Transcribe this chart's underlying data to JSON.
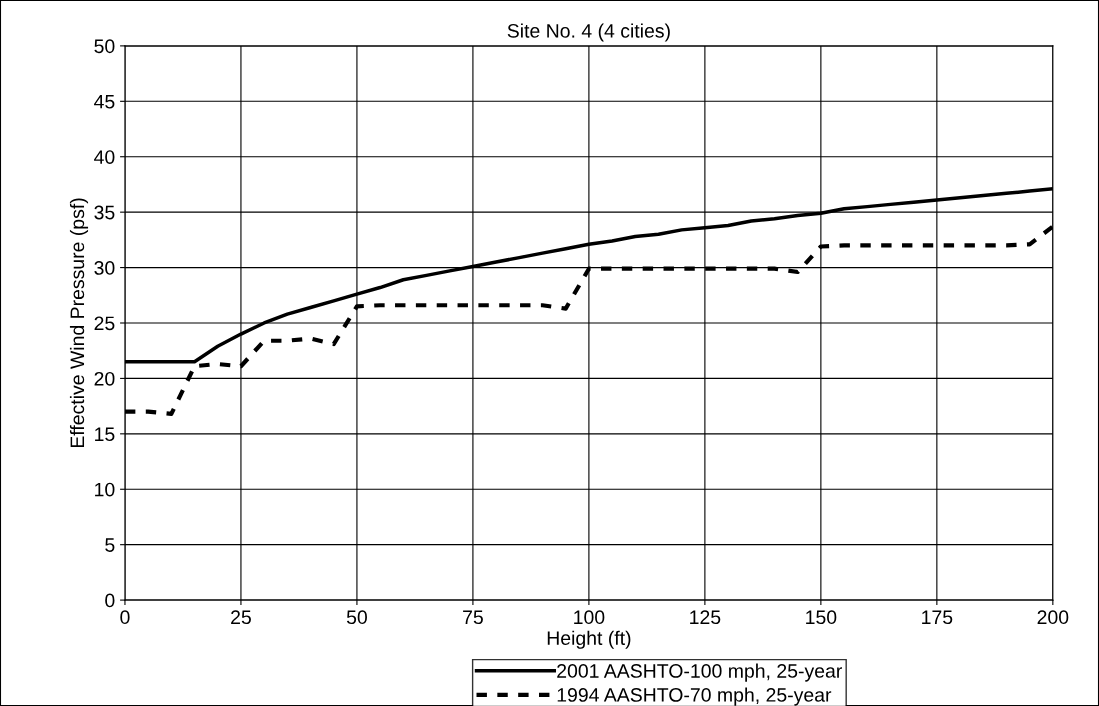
{
  "chart_data": {
    "type": "line",
    "title": "Site No. 4 (4 cities)",
    "xlabel": "Height (ft)",
    "ylabel": "Effective Wind Pressure (psf)",
    "x": [
      0,
      5,
      10,
      15,
      20,
      25,
      30,
      35,
      40,
      45,
      50,
      55,
      60,
      65,
      70,
      75,
      80,
      85,
      90,
      95,
      100,
      105,
      110,
      115,
      120,
      125,
      130,
      135,
      140,
      145,
      150,
      155,
      160,
      165,
      170,
      175,
      180,
      185,
      190,
      195,
      200
    ],
    "series": [
      {
        "name": "2001 AASHTO-100 mph, 25-year",
        "color": "#000000",
        "line_style": "solid",
        "values": [
          21.5,
          21.5,
          21.5,
          21.5,
          22.9,
          24.0,
          25.0,
          25.8,
          26.4,
          27.0,
          27.6,
          28.2,
          28.9,
          29.3,
          29.7,
          30.1,
          30.5,
          30.9,
          31.3,
          31.7,
          32.1,
          32.4,
          32.8,
          33.0,
          33.4,
          33.6,
          33.8,
          34.2,
          34.4,
          34.7,
          34.9,
          35.3,
          35.5,
          35.7,
          35.9,
          36.1,
          36.3,
          36.5,
          36.7,
          36.9,
          37.1
        ]
      },
      {
        "name": "1994 AASHTO-70 mph, 25-year",
        "color": "#000000",
        "line_style": "dashed",
        "values": [
          17.0,
          17.0,
          16.8,
          21.1,
          21.3,
          21.1,
          23.4,
          23.4,
          23.6,
          23.1,
          26.5,
          26.6,
          26.6,
          26.6,
          26.6,
          26.6,
          26.6,
          26.6,
          26.6,
          26.3,
          29.9,
          29.9,
          29.9,
          29.9,
          29.9,
          29.9,
          29.9,
          29.9,
          29.9,
          29.6,
          31.9,
          32.0,
          32.0,
          32.0,
          32.0,
          32.0,
          32.0,
          32.0,
          32.0,
          32.1,
          33.7
        ]
      }
    ],
    "xlim": [
      0,
      200
    ],
    "xticks": [
      0,
      25,
      50,
      75,
      100,
      125,
      150,
      175,
      200
    ],
    "ylim": [
      0,
      50
    ],
    "yticks": [
      0,
      5,
      10,
      15,
      20,
      25,
      30,
      35,
      40,
      45,
      50
    ],
    "grid": true,
    "legend": "bottom",
    "marker": "none"
  }
}
